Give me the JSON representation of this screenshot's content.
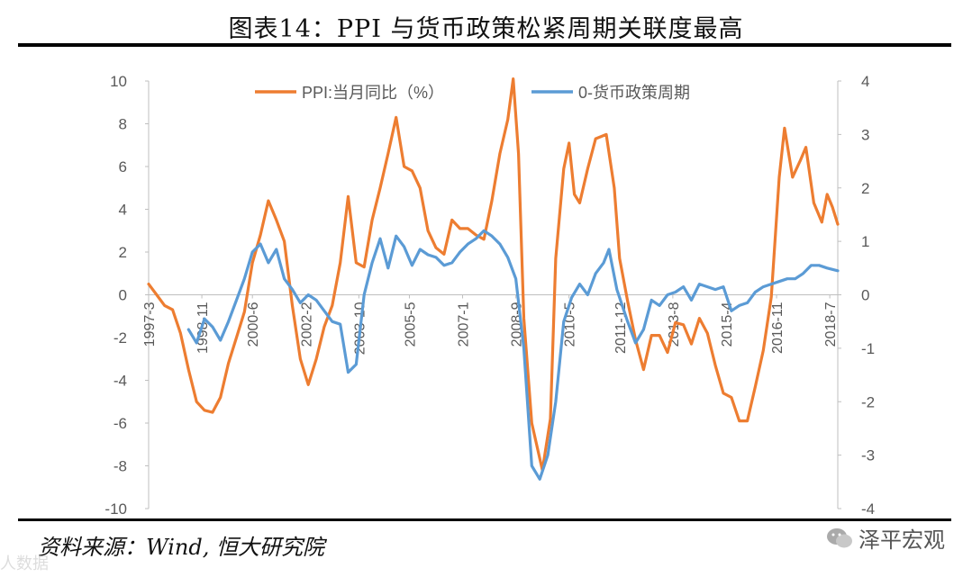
{
  "page": {
    "title": "图表14：PPI 与货币政策松紧周期关联度最高",
    "source": "资料来源：Wind, 恒大研究院",
    "watermark_right": "泽平宏观",
    "watermark_left": "人数据"
  },
  "chart_data": {
    "type": "line",
    "title": "图表14：PPI 与货币政策松紧周期关联度最高",
    "legend_position": "top-center",
    "grid": false,
    "y_left": {
      "range": [
        -10,
        10
      ],
      "ticks": [
        "-10",
        "-8",
        "-6",
        "-4",
        "-2",
        "0",
        "2",
        "4",
        "6",
        "8",
        "10"
      ]
    },
    "y_right": {
      "range": [
        -4,
        4
      ],
      "ticks": [
        "-4",
        "-3",
        "-2",
        "-1",
        "0",
        "1",
        "2",
        "3",
        "4"
      ]
    },
    "x_start": "1997-3",
    "x_end": "2018-10",
    "x_tick_labels": [
      "1997-3",
      "1998-11",
      "2000-6",
      "2002-2",
      "2003-10",
      "2005-5",
      "2007-1",
      "2008-9",
      "2010-5",
      "2011-12",
      "2013-8",
      "2015-4",
      "2016-11",
      "2018-7"
    ],
    "series": [
      {
        "name": "PPI:当月同比（%）",
        "axis": "left",
        "color": "#ED7D31",
        "points": [
          [
            "1997-3",
            0.5
          ],
          [
            "1997-6",
            0.0
          ],
          [
            "1997-9",
            -0.5
          ],
          [
            "1997-12",
            -0.7
          ],
          [
            "1998-3",
            -1.8
          ],
          [
            "1998-6",
            -3.5
          ],
          [
            "1998-9",
            -5.0
          ],
          [
            "1998-12",
            -5.4
          ],
          [
            "1999-3",
            -5.5
          ],
          [
            "1999-6",
            -4.8
          ],
          [
            "1999-9",
            -3.2
          ],
          [
            "1999-12",
            -2.0
          ],
          [
            "2000-3",
            -0.8
          ],
          [
            "2000-6",
            1.5
          ],
          [
            "2000-9",
            2.8
          ],
          [
            "2000-12",
            4.4
          ],
          [
            "2001-3",
            3.5
          ],
          [
            "2001-6",
            2.5
          ],
          [
            "2001-9",
            -0.5
          ],
          [
            "2001-12",
            -3.0
          ],
          [
            "2002-3",
            -4.2
          ],
          [
            "2002-6",
            -3.0
          ],
          [
            "2002-9",
            -1.5
          ],
          [
            "2002-12",
            -0.5
          ],
          [
            "2003-3",
            1.5
          ],
          [
            "2003-6",
            4.6
          ],
          [
            "2003-9",
            1.5
          ],
          [
            "2003-12",
            1.3
          ],
          [
            "2004-3",
            3.5
          ],
          [
            "2004-6",
            5.0
          ],
          [
            "2004-9",
            6.6
          ],
          [
            "2004-12",
            8.3
          ],
          [
            "2005-3",
            6.0
          ],
          [
            "2005-6",
            5.8
          ],
          [
            "2005-9",
            5.0
          ],
          [
            "2005-12",
            3.0
          ],
          [
            "2006-3",
            2.2
          ],
          [
            "2006-6",
            1.9
          ],
          [
            "2006-9",
            3.5
          ],
          [
            "2006-12",
            3.1
          ],
          [
            "2007-3",
            3.1
          ],
          [
            "2007-6",
            2.8
          ],
          [
            "2007-9",
            2.6
          ],
          [
            "2007-12",
            4.4
          ],
          [
            "2008-3",
            6.6
          ],
          [
            "2008-6",
            8.2
          ],
          [
            "2008-8",
            10.1
          ],
          [
            "2008-10",
            6.6
          ],
          [
            "2008-12",
            -1.1
          ],
          [
            "2009-3",
            -6.0
          ],
          [
            "2009-7",
            -8.2
          ],
          [
            "2009-10",
            -5.8
          ],
          [
            "2009-12",
            1.7
          ],
          [
            "2010-3",
            5.9
          ],
          [
            "2010-5",
            7.1
          ],
          [
            "2010-7",
            4.7
          ],
          [
            "2010-9",
            4.3
          ],
          [
            "2010-12",
            5.9
          ],
          [
            "2011-3",
            7.3
          ],
          [
            "2011-7",
            7.5
          ],
          [
            "2011-10",
            5.0
          ],
          [
            "2011-12",
            1.7
          ],
          [
            "2012-3",
            -0.3
          ],
          [
            "2012-6",
            -2.1
          ],
          [
            "2012-9",
            -3.5
          ],
          [
            "2012-12",
            -1.9
          ],
          [
            "2013-3",
            -1.9
          ],
          [
            "2013-6",
            -2.7
          ],
          [
            "2013-9",
            -1.3
          ],
          [
            "2013-12",
            -1.4
          ],
          [
            "2014-3",
            -2.3
          ],
          [
            "2014-6",
            -1.1
          ],
          [
            "2014-9",
            -1.8
          ],
          [
            "2014-12",
            -3.3
          ],
          [
            "2015-3",
            -4.6
          ],
          [
            "2015-6",
            -4.8
          ],
          [
            "2015-9",
            -5.9
          ],
          [
            "2015-12",
            -5.9
          ],
          [
            "2016-3",
            -4.3
          ],
          [
            "2016-6",
            -2.6
          ],
          [
            "2016-9",
            -0.1
          ],
          [
            "2016-12",
            5.5
          ],
          [
            "2017-2",
            7.8
          ],
          [
            "2017-5",
            5.5
          ],
          [
            "2017-8",
            6.3
          ],
          [
            "2017-10",
            6.9
          ],
          [
            "2018-1",
            4.3
          ],
          [
            "2018-4",
            3.4
          ],
          [
            "2018-6",
            4.7
          ],
          [
            "2018-8",
            4.1
          ],
          [
            "2018-10",
            3.3
          ]
        ]
      },
      {
        "name": "0-货币政策周期",
        "axis": "right",
        "color": "#5B9BD5",
        "points": [
          [
            "1998-6",
            -0.65
          ],
          [
            "1998-9",
            -0.9
          ],
          [
            "1998-12",
            -0.45
          ],
          [
            "1999-3",
            -0.6
          ],
          [
            "1999-6",
            -0.85
          ],
          [
            "1999-9",
            -0.5
          ],
          [
            "1999-12",
            -0.1
          ],
          [
            "2000-3",
            0.3
          ],
          [
            "2000-6",
            0.8
          ],
          [
            "2000-9",
            0.95
          ],
          [
            "2000-12",
            0.6
          ],
          [
            "2001-3",
            0.85
          ],
          [
            "2001-6",
            0.3
          ],
          [
            "2001-9",
            0.1
          ],
          [
            "2001-12",
            -0.15
          ],
          [
            "2002-3",
            0.0
          ],
          [
            "2002-6",
            -0.1
          ],
          [
            "2002-9",
            -0.3
          ],
          [
            "2002-12",
            -0.5
          ],
          [
            "2003-3",
            -0.55
          ],
          [
            "2003-6",
            -1.45
          ],
          [
            "2003-9",
            -1.3
          ],
          [
            "2003-12",
            0.0
          ],
          [
            "2004-3",
            0.6
          ],
          [
            "2004-6",
            1.05
          ],
          [
            "2004-9",
            0.5
          ],
          [
            "2004-12",
            1.1
          ],
          [
            "2005-3",
            0.9
          ],
          [
            "2005-6",
            0.55
          ],
          [
            "2005-9",
            0.85
          ],
          [
            "2005-12",
            0.75
          ],
          [
            "2006-3",
            0.7
          ],
          [
            "2006-6",
            0.55
          ],
          [
            "2006-9",
            0.6
          ],
          [
            "2006-12",
            0.8
          ],
          [
            "2007-3",
            0.95
          ],
          [
            "2007-6",
            1.05
          ],
          [
            "2007-9",
            1.2
          ],
          [
            "2007-12",
            1.1
          ],
          [
            "2008-3",
            0.95
          ],
          [
            "2008-6",
            0.7
          ],
          [
            "2008-9",
            0.3
          ],
          [
            "2008-12",
            -1.0
          ],
          [
            "2009-3",
            -3.2
          ],
          [
            "2009-6",
            -3.45
          ],
          [
            "2009-9",
            -3.0
          ],
          [
            "2009-12",
            -2.0
          ],
          [
            "2010-3",
            -0.5
          ],
          [
            "2010-6",
            -0.05
          ],
          [
            "2010-9",
            0.2
          ],
          [
            "2010-12",
            0.0
          ],
          [
            "2011-3",
            0.4
          ],
          [
            "2011-6",
            0.6
          ],
          [
            "2011-8",
            0.85
          ],
          [
            "2011-11",
            0.1
          ],
          [
            "2012-3",
            -0.5
          ],
          [
            "2012-6",
            -0.9
          ],
          [
            "2012-9",
            -0.65
          ],
          [
            "2012-12",
            -0.1
          ],
          [
            "2013-3",
            -0.2
          ],
          [
            "2013-6",
            0.0
          ],
          [
            "2013-9",
            0.05
          ],
          [
            "2013-12",
            0.15
          ],
          [
            "2014-3",
            -0.1
          ],
          [
            "2014-6",
            0.2
          ],
          [
            "2014-9",
            0.15
          ],
          [
            "2014-12",
            0.1
          ],
          [
            "2015-3",
            0.15
          ],
          [
            "2015-6",
            -0.3
          ],
          [
            "2015-9",
            -0.2
          ],
          [
            "2015-12",
            -0.15
          ],
          [
            "2016-3",
            0.05
          ],
          [
            "2016-6",
            0.15
          ],
          [
            "2016-9",
            0.2
          ],
          [
            "2016-12",
            0.25
          ],
          [
            "2017-3",
            0.3
          ],
          [
            "2017-6",
            0.3
          ],
          [
            "2017-9",
            0.4
          ],
          [
            "2017-12",
            0.55
          ],
          [
            "2018-3",
            0.55
          ],
          [
            "2018-6",
            0.5
          ],
          [
            "2018-10",
            0.45
          ]
        ]
      }
    ]
  }
}
